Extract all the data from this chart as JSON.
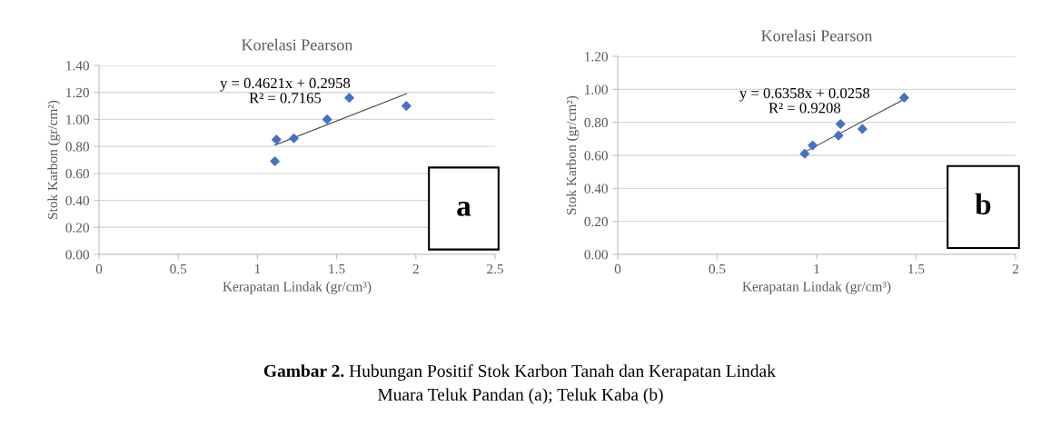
{
  "chart_data": [
    {
      "type": "scatter",
      "title": "Korelasi Pearson",
      "xlabel": "Kerapatan Lindak (gr/cm³)",
      "ylabel": "Stok Karbon (gr/cm²)",
      "xlim": [
        0,
        2.5
      ],
      "xticks": [
        0,
        0.5,
        1,
        1.5,
        2,
        2.5
      ],
      "ylim": [
        0,
        1.4
      ],
      "yticks": [
        {
          "value": 0,
          "label": "0.00"
        },
        {
          "value": 0.2,
          "label": "0.20"
        },
        {
          "value": 0.4,
          "label": "0.40"
        },
        {
          "value": 0.6,
          "label": "0.60"
        },
        {
          "value": 0.8,
          "label": "0.80"
        },
        {
          "value": 1.0,
          "label": "1.00"
        },
        {
          "value": 1.2,
          "label": "1.20"
        },
        {
          "value": 1.4,
          "label": "1.40"
        }
      ],
      "grid": "y",
      "series": [
        {
          "marker": "diamond",
          "color": "#4472c4",
          "x": [
            1.11,
            1.12,
            1.23,
            1.44,
            1.58,
            1.94
          ],
          "values": [
            0.69,
            0.85,
            0.86,
            1.0,
            1.16,
            1.1
          ]
        },
        {
          "type": "line",
          "marker": "none",
          "color": "#404040",
          "x": [
            1.11,
            1.94
          ],
          "values": [
            0.81,
            1.19
          ]
        }
      ],
      "annotations": [
        "y = 0.4621x + 0.2958\nR² = 0.7165",
        "a",
        "Gambar 2.",
        "Hubungan Positif Stok Karbon Tanah dan Kerapatan Lindak",
        "Muara Teluk Pandan (a); Teluk Kaba (b)"
      ]
    },
    {
      "type": "scatter",
      "title": "Korelasi Pearson",
      "xlabel": "Kerapatan Lindak (gr/cm³)",
      "ylabel": "Stok Karbon (gr/cm²)",
      "xlim": [
        0,
        2
      ],
      "xticks": [
        0,
        0.5,
        1,
        1.5,
        2
      ],
      "ylim": [
        0,
        1.2
      ],
      "yticks": [
        {
          "value": 0,
          "label": "0.00"
        },
        {
          "value": 0.2,
          "label": "0.20"
        },
        {
          "value": 0.4,
          "label": "0.40"
        },
        {
          "value": 0.6,
          "label": "0.60"
        },
        {
          "value": 0.8,
          "label": "0.80"
        },
        {
          "value": 1.0,
          "label": "1.00"
        },
        {
          "value": 1.2,
          "label": "1.20"
        }
      ],
      "grid": "y",
      "series": [
        {
          "marker": "diamond",
          "color": "#4472c4",
          "x": [
            0.94,
            0.98,
            1.11,
            1.12,
            1.23,
            1.44
          ],
          "values": [
            0.61,
            0.66,
            0.72,
            0.79,
            0.76,
            0.95
          ]
        },
        {
          "type": "line",
          "marker": "none",
          "color": "#404040",
          "x": [
            0.94,
            1.44
          ],
          "values": [
            0.62,
            0.94
          ]
        }
      ],
      "annotations": [
        "y = 0.6358x + 0.0258\nR² = 0.9208",
        "b"
      ]
    }
  ]
}
